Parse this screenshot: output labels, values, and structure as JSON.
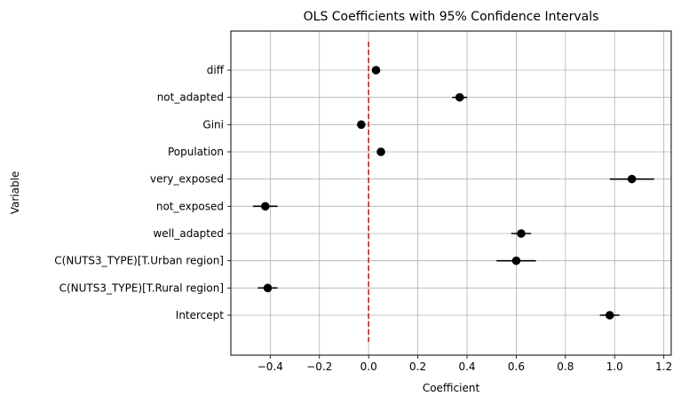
{
  "chart_data": {
    "type": "scatter",
    "title": "OLS Coefficients with 95% Confidence Intervals",
    "xlabel": "Coefficient",
    "ylabel": "Variable",
    "xlim": [
      -0.56,
      1.23
    ],
    "xticks": [
      -0.4,
      -0.2,
      0.0,
      0.2,
      0.4,
      0.6,
      0.8,
      1.0,
      1.2
    ],
    "xtick_labels": [
      "−0.4",
      "−0.2",
      "0.0",
      "0.2",
      "0.4",
      "0.6",
      "0.8",
      "1.0",
      "1.2"
    ],
    "grid": true,
    "reference_line": {
      "x": 0,
      "color": "#e31a1c",
      "style": "dashed"
    },
    "point_color": "#000000",
    "categories": [
      "Intercept",
      "C(NUTS3_TYPE)[T.Rural region]",
      "C(NUTS3_TYPE)[T.Urban region]",
      "well_adapted",
      "not_exposed",
      "very_exposed",
      "Population",
      "Gini",
      "not_adapted",
      "diff"
    ],
    "values": [
      0.98,
      -0.41,
      0.6,
      0.62,
      -0.42,
      1.07,
      0.05,
      -0.03,
      0.37,
      0.03
    ],
    "ci_lower": [
      0.94,
      -0.45,
      0.52,
      0.58,
      -0.47,
      0.98,
      0.04,
      -0.04,
      0.34,
      0.02
    ],
    "ci_upper": [
      1.02,
      -0.37,
      0.68,
      0.66,
      -0.37,
      1.16,
      0.06,
      -0.02,
      0.4,
      0.04
    ]
  }
}
